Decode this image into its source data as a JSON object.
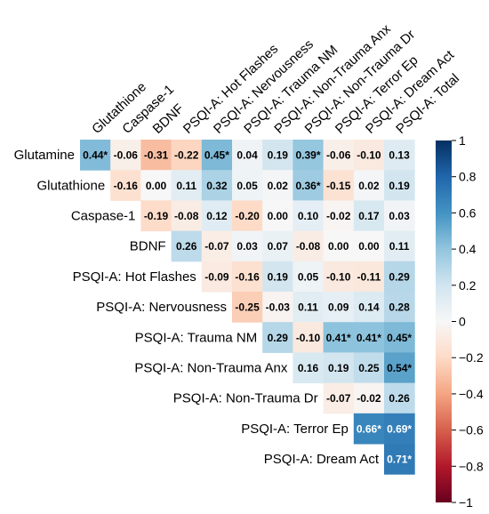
{
  "chart_data": {
    "type": "heatmap",
    "title": "",
    "rows": [
      "Glutamine",
      "Glutathione",
      "Caspase-1",
      "BDNF",
      "PSQI-A: Hot Flashes",
      "PSQI-A: Nervousness",
      "PSQI-A: Trauma NM",
      "PSQI-A: Non-Trauma Anx",
      "PSQI-A: Non-Trauma Dr",
      "PSQI-A: Terror Ep",
      "PSQI-A: Dream Act"
    ],
    "columns": [
      "Glutathione",
      "Caspase-1",
      "BDNF",
      "PSQI-A: Hot Flashes",
      "PSQI-A: Nervousness",
      "PSQI-A: Trauma NM",
      "PSQI-A: Non-Trauma Anx",
      "PSQI-A: Non-Trauma Dr",
      "PSQI-A: Terror Ep",
      "PSQI-A: Dream Act",
      "PSQI-A: Total"
    ],
    "cells": [
      [
        "0.44*",
        "-0.06",
        "-0.31",
        "-0.22",
        "0.45*",
        "0.04",
        "0.19",
        "0.39*",
        "-0.06",
        "-0.10",
        "0.13"
      ],
      [
        "-0.16",
        "0.00",
        "0.11",
        "0.32",
        "0.05",
        "0.02",
        "0.36*",
        "-0.15",
        "0.02",
        "0.19"
      ],
      [
        "-0.19",
        "-0.08",
        "0.12",
        "-0.20",
        "0.00",
        "0.10",
        "-0.02",
        "0.17",
        "0.03"
      ],
      [
        "0.26",
        "-0.07",
        "0.03",
        "0.07",
        "-0.08",
        "0.00",
        "0.00",
        "0.11"
      ],
      [
        "-0.09",
        "-0.16",
        "0.19",
        "0.05",
        "-0.10",
        "-0.11",
        "0.29"
      ],
      [
        "-0.25",
        "-0.03",
        "0.11",
        "0.09",
        "0.14",
        "0.28"
      ],
      [
        "0.29",
        "-0.10",
        "0.41*",
        "0.41*",
        "0.45*"
      ],
      [
        "0.16",
        "0.19",
        "0.25",
        "0.54*"
      ],
      [
        "-0.07",
        "-0.02",
        "0.26"
      ],
      [
        "0.66*",
        "0.69*"
      ],
      [
        "0.71*"
      ]
    ],
    "colorbar": {
      "range": [
        -1,
        1
      ],
      "ticks": [
        "1",
        "0.8",
        "0.6",
        "0.4",
        "0.2",
        "0",
        "−0.2",
        "−0.4",
        "−0.6",
        "−0.8",
        "−1"
      ],
      "colors": {
        "negative": "#67001f",
        "neutral": "#f7f7f7",
        "positive": "#053061"
      }
    }
  }
}
